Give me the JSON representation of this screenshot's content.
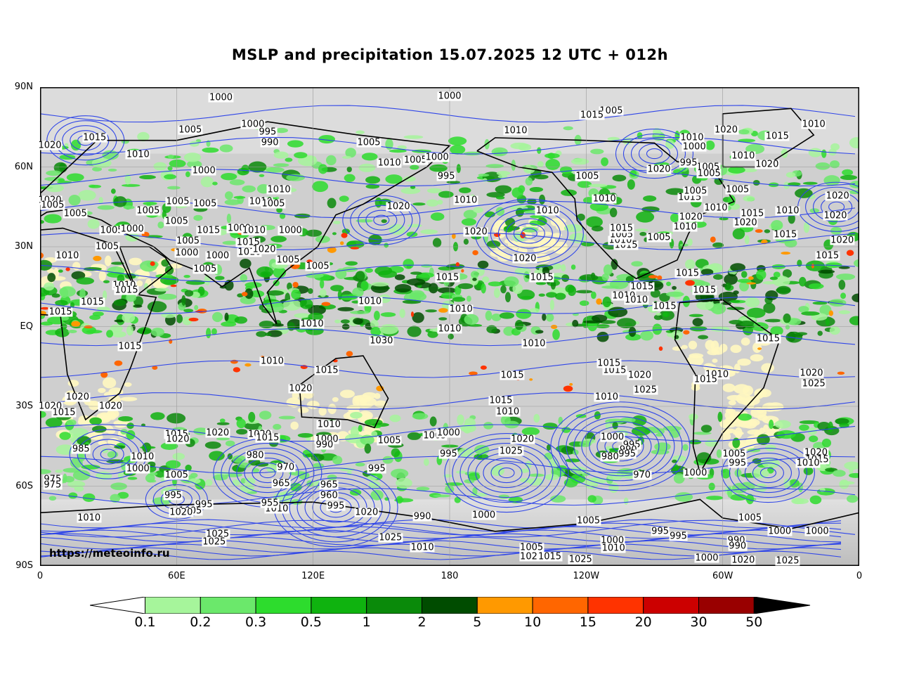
{
  "title": "MSLP and precipitation 15.07.2025 12 UTC + 012h",
  "credit": "https://meteoinfo.ru",
  "lat_labels": [
    "90N",
    "60N",
    "30N",
    "EQ",
    "30S",
    "60S",
    "90S"
  ],
  "lon_labels": [
    "0",
    "60E",
    "120E",
    "180",
    "120W",
    "60W",
    "0"
  ],
  "legend": {
    "ticks": [
      "0.1",
      "0.2",
      "0.3",
      "0.5",
      "1",
      "2",
      "5",
      "10",
      "15",
      "20",
      "30",
      "50"
    ],
    "colors": [
      "#a6f59b",
      "#6be86b",
      "#2ddc2d",
      "#0fb30f",
      "#0a8a0a",
      "#004c00",
      "#ff9900",
      "#ff6600",
      "#ff3300",
      "#cc0000",
      "#990000"
    ],
    "under_color": "#ffffff",
    "over_color": "#000000"
  },
  "isobar_labels": [
    {
      "t": "1000",
      "lon": 79.5,
      "lat": 86.0
    },
    {
      "t": "1000",
      "lon": 180.0,
      "lat": 86.5
    },
    {
      "t": "1005",
      "lon": 251.0,
      "lat": 81.0
    },
    {
      "t": "1005",
      "lon": 66.0,
      "lat": 74.0
    },
    {
      "t": "1000",
      "lon": 93.5,
      "lat": 76.0
    },
    {
      "t": "995",
      "lon": 100.0,
      "lat": 73.0
    },
    {
      "t": "990",
      "lon": 101.0,
      "lat": 69.0
    },
    {
      "t": "1005",
      "lon": 144.5,
      "lat": 69.0
    },
    {
      "t": "1010",
      "lon": 209.0,
      "lat": 73.5
    },
    {
      "t": "1015",
      "lon": 24.0,
      "lat": 71.0
    },
    {
      "t": "1010",
      "lon": 43.0,
      "lat": 64.5
    },
    {
      "t": "1020",
      "lon": 0.5,
      "lat": 68.0
    },
    {
      "t": "1000",
      "lon": 72.0,
      "lat": 58.5
    },
    {
      "t": "1010",
      "lon": 153.5,
      "lat": 61.5
    },
    {
      "t": "1005",
      "lon": 165.0,
      "lat": 62.5
    },
    {
      "t": "1000",
      "lon": 174.5,
      "lat": 63.5
    },
    {
      "t": "995",
      "lon": 178.5,
      "lat": 56.5
    },
    {
      "t": "1010",
      "lon": 105.0,
      "lat": 51.5
    },
    {
      "t": "1010",
      "lon": 187.0,
      "lat": 47.5
    },
    {
      "t": "1020",
      "lon": 157.5,
      "lat": 45.0
    },
    {
      "t": "1010",
      "lon": 297.0,
      "lat": 44.5
    },
    {
      "t": "1020",
      "lon": 272.0,
      "lat": 59.0
    },
    {
      "t": "1005",
      "lon": 293.5,
      "lat": 60.0
    },
    {
      "t": "1010",
      "lon": 309.0,
      "lat": 64.0
    },
    {
      "t": "1020",
      "lon": 319.5,
      "lat": 61.0
    },
    {
      "t": "1015",
      "lon": 324.0,
      "lat": 71.5
    },
    {
      "t": "1010",
      "lon": 340.0,
      "lat": 76.0
    },
    {
      "t": "1020",
      "lon": 301.5,
      "lat": 74.0
    },
    {
      "t": "1005",
      "lon": 306.5,
      "lat": 51.5
    },
    {
      "t": "1015",
      "lon": 285.5,
      "lat": 48.5
    },
    {
      "t": "1015",
      "lon": 313.0,
      "lat": 42.5
    },
    {
      "t": "1010",
      "lon": 328.5,
      "lat": 43.5
    },
    {
      "t": "1020",
      "lon": 310.0,
      "lat": 39.0
    },
    {
      "t": "1015",
      "lon": 327.5,
      "lat": 34.5
    },
    {
      "t": "1020",
      "lon": 349.5,
      "lat": 41.5
    },
    {
      "t": "1020",
      "lon": 350.5,
      "lat": 49.0
    },
    {
      "t": "1015",
      "lon": 346.0,
      "lat": 26.5
    },
    {
      "t": "1020",
      "lon": 352.5,
      "lat": 32.5
    },
    {
      "t": "1020",
      "lon": 4.0,
      "lat": 47.5
    },
    {
      "t": "1005",
      "lon": 5.5,
      "lat": 45.5
    },
    {
      "t": "1005",
      "lon": 15.5,
      "lat": 42.5
    },
    {
      "t": "1005",
      "lon": 31.5,
      "lat": 36.0
    },
    {
      "t": "1000",
      "lon": 40.5,
      "lat": 36.5
    },
    {
      "t": "1005",
      "lon": 29.5,
      "lat": 30.0
    },
    {
      "t": "1010",
      "lon": 12.0,
      "lat": 26.5
    },
    {
      "t": "1010",
      "lon": 37.0,
      "lat": 15.5
    },
    {
      "t": "1015",
      "lon": 38.0,
      "lat": 13.5
    },
    {
      "t": "1015",
      "lon": 23.0,
      "lat": 9.0
    },
    {
      "t": "1015",
      "lon": 9.0,
      "lat": 5.5
    },
    {
      "t": "1005",
      "lon": 47.5,
      "lat": 43.5
    },
    {
      "t": "1005",
      "lon": 60.5,
      "lat": 47.0
    },
    {
      "t": "1005",
      "lon": 72.5,
      "lat": 46.0
    },
    {
      "t": "1005",
      "lon": 60.0,
      "lat": 39.5
    },
    {
      "t": "1005",
      "lon": 65.0,
      "lat": 32.0
    },
    {
      "t": "1000",
      "lon": 64.5,
      "lat": 27.5
    },
    {
      "t": "1015",
      "lon": 74.0,
      "lat": 36.0
    },
    {
      "t": "1000",
      "lon": 87.5,
      "lat": 37.0
    },
    {
      "t": "1010",
      "lon": 94.0,
      "lat": 36.0
    },
    {
      "t": "1000",
      "lon": 110.0,
      "lat": 36.0
    },
    {
      "t": "1010",
      "lon": 97.0,
      "lat": 47.0
    },
    {
      "t": "1005",
      "lon": 102.5,
      "lat": 46.0
    },
    {
      "t": "1015",
      "lon": 91.5,
      "lat": 31.5
    },
    {
      "t": "1010",
      "lon": 92.0,
      "lat": 28.0
    },
    {
      "t": "1020",
      "lon": 98.5,
      "lat": 29.0
    },
    {
      "t": "1005",
      "lon": 72.5,
      "lat": 21.5
    },
    {
      "t": "1000",
      "lon": 78.0,
      "lat": 26.5
    },
    {
      "t": "1005",
      "lon": 109.0,
      "lat": 25.0
    },
    {
      "t": "1005",
      "lon": 122.0,
      "lat": 22.5
    },
    {
      "t": "1015",
      "lon": 179.0,
      "lat": 18.5
    },
    {
      "t": "1015",
      "lon": 220.5,
      "lat": 18.5
    },
    {
      "t": "1020",
      "lon": 191.5,
      "lat": 35.5
    },
    {
      "t": "1020",
      "lon": 213.0,
      "lat": 25.5
    },
    {
      "t": "1010",
      "lon": 145.0,
      "lat": 9.5
    },
    {
      "t": "1010",
      "lon": 185.0,
      "lat": 6.5
    },
    {
      "t": "1010",
      "lon": 180.0,
      "lat": -1.0
    },
    {
      "t": "1010",
      "lon": 119.5,
      "lat": 1.0
    },
    {
      "t": "1030",
      "lon": 150.0,
      "lat": -5.5
    },
    {
      "t": "1010",
      "lon": 217.0,
      "lat": -6.5
    },
    {
      "t": "1010",
      "lon": 102.0,
      "lat": -13.0
    },
    {
      "t": "1015",
      "lon": 126.0,
      "lat": -16.5
    },
    {
      "t": "1015",
      "lon": 39.5,
      "lat": -7.5
    },
    {
      "t": "1015",
      "lon": 207.5,
      "lat": -18.5
    },
    {
      "t": "1015",
      "lon": 252.5,
      "lat": -16.5
    },
    {
      "t": "1020",
      "lon": 263.5,
      "lat": -18.5
    },
    {
      "t": "1025",
      "lon": 266.0,
      "lat": -24.0
    },
    {
      "t": "1010",
      "lon": 249.0,
      "lat": -26.5
    },
    {
      "t": "1015",
      "lon": 202.5,
      "lat": -28.0
    },
    {
      "t": "1010",
      "lon": 205.5,
      "lat": -32.0
    },
    {
      "t": "1020",
      "lon": 114.5,
      "lat": -23.5
    },
    {
      "t": "1020",
      "lon": 16.5,
      "lat": -26.5
    },
    {
      "t": "1020",
      "lon": 4.5,
      "lat": -30.0
    },
    {
      "t": "1015",
      "lon": 10.5,
      "lat": -32.5
    },
    {
      "t": "1020",
      "lon": 31.0,
      "lat": -30.0
    },
    {
      "t": "1015",
      "lon": 60.0,
      "lat": -40.5
    },
    {
      "t": "1020",
      "lon": 60.5,
      "lat": -42.5
    },
    {
      "t": "1020",
      "lon": 78.0,
      "lat": -40.0
    },
    {
      "t": "1020",
      "lon": 96.5,
      "lat": -40.5
    },
    {
      "t": "1015",
      "lon": 100.0,
      "lat": -42.0
    },
    {
      "t": "1010",
      "lon": 127.0,
      "lat": -37.0
    },
    {
      "t": "1000",
      "lon": 126.0,
      "lat": -42.5
    },
    {
      "t": "990",
      "lon": 125.0,
      "lat": -44.5
    },
    {
      "t": "1005",
      "lon": 153.5,
      "lat": -43.0
    },
    {
      "t": "1005",
      "lon": 173.5,
      "lat": -41.0
    },
    {
      "t": "1000",
      "lon": 179.5,
      "lat": -40.0
    },
    {
      "t": "1020",
      "lon": 212.0,
      "lat": -42.5
    },
    {
      "t": "1025",
      "lon": 207.0,
      "lat": -47.0
    },
    {
      "t": "995",
      "lon": 179.5,
      "lat": -48.0
    },
    {
      "t": "995",
      "lon": 148.0,
      "lat": -53.5
    },
    {
      "t": "985",
      "lon": 18.0,
      "lat": -46.0
    },
    {
      "t": "1010",
      "lon": 45.0,
      "lat": -49.0
    },
    {
      "t": "1000",
      "lon": 43.0,
      "lat": -53.5
    },
    {
      "t": "980",
      "lon": 94.5,
      "lat": -48.5
    },
    {
      "t": "970",
      "lon": 108.0,
      "lat": -53.0
    },
    {
      "t": "965",
      "lon": 106.0,
      "lat": -59.0
    },
    {
      "t": "965",
      "lon": 127.0,
      "lat": -59.5
    },
    {
      "t": "960",
      "lon": 127.0,
      "lat": -63.5
    },
    {
      "t": "995",
      "lon": 130.0,
      "lat": -67.5
    },
    {
      "t": "1005",
      "lon": 60.0,
      "lat": -56.0
    },
    {
      "t": "995",
      "lon": 58.5,
      "lat": -63.5
    },
    {
      "t": "995",
      "lon": 72.0,
      "lat": -67.0
    },
    {
      "t": "1005",
      "lon": 66.0,
      "lat": -69.5
    },
    {
      "t": "1020",
      "lon": 62.0,
      "lat": -70.0
    },
    {
      "t": "975",
      "lon": 5.5,
      "lat": -57.5
    },
    {
      "t": "975",
      "lon": 5.5,
      "lat": -59.5
    },
    {
      "t": "1010",
      "lon": 21.5,
      "lat": -72.0
    },
    {
      "t": "1010",
      "lon": 104.0,
      "lat": -68.5
    },
    {
      "t": "955",
      "lon": 101.0,
      "lat": -66.5
    },
    {
      "t": "1020",
      "lon": 143.5,
      "lat": -70.0
    },
    {
      "t": "1025",
      "lon": 78.0,
      "lat": -78.0
    },
    {
      "t": "1025",
      "lon": 76.5,
      "lat": -81.0
    },
    {
      "t": "1025",
      "lon": 154.0,
      "lat": -79.5
    },
    {
      "t": "1010",
      "lon": 168.0,
      "lat": -83.0
    },
    {
      "t": "990",
      "lon": 168.0,
      "lat": -71.5
    },
    {
      "t": "1000",
      "lon": 195.0,
      "lat": -71.0
    },
    {
      "t": "1005",
      "lon": 216.0,
      "lat": -83.0
    },
    {
      "t": "1020",
      "lon": 216.0,
      "lat": -86.5
    },
    {
      "t": "1015",
      "lon": 224.0,
      "lat": -86.5
    },
    {
      "t": "1025",
      "lon": 237.5,
      "lat": -87.5
    },
    {
      "t": "1005",
      "lon": 241.0,
      "lat": -73.0
    },
    {
      "t": "1000",
      "lon": 251.5,
      "lat": -80.5
    },
    {
      "t": "1010",
      "lon": 252.0,
      "lat": -83.5
    },
    {
      "t": "1000",
      "lon": 251.5,
      "lat": -41.5
    },
    {
      "t": "995",
      "lon": 260.0,
      "lat": -44.5
    },
    {
      "t": "990",
      "lon": 258.5,
      "lat": -46.5
    },
    {
      "t": "995",
      "lon": 258.0,
      "lat": -48.0
    },
    {
      "t": "980",
      "lon": 250.5,
      "lat": -49.0
    },
    {
      "t": "970",
      "lon": 264.5,
      "lat": -56.0
    },
    {
      "t": "1000",
      "lon": 288.0,
      "lat": -55.0
    },
    {
      "t": "1005",
      "lon": 305.0,
      "lat": -48.0
    },
    {
      "t": "995",
      "lon": 306.5,
      "lat": -51.5
    },
    {
      "t": "1020",
      "lon": 341.0,
      "lat": -47.5
    },
    {
      "t": "1015",
      "lon": 341.5,
      "lat": -50.0
    },
    {
      "t": "1010",
      "lon": 337.5,
      "lat": -51.5
    },
    {
      "t": "1005",
      "lon": 312.0,
      "lat": -72.0
    },
    {
      "t": "995",
      "lon": 272.5,
      "lat": -77.0
    },
    {
      "t": "995",
      "lon": 280.5,
      "lat": -79.0
    },
    {
      "t": "1000",
      "lon": 325.0,
      "lat": -77.0
    },
    {
      "t": "1000",
      "lon": 341.5,
      "lat": -77.0
    },
    {
      "t": "990",
      "lon": 306.0,
      "lat": -80.5
    },
    {
      "t": "990",
      "lon": 306.5,
      "lat": -82.5
    },
    {
      "t": "1000",
      "lon": 293.0,
      "lat": -87.0
    },
    {
      "t": "1020",
      "lon": 309.0,
      "lat": -88.0
    },
    {
      "t": "1025",
      "lon": 328.5,
      "lat": -88.5
    },
    {
      "t": "1020",
      "lon": 339.0,
      "lat": -17.5
    },
    {
      "t": "1025",
      "lon": 340.0,
      "lat": -21.5
    },
    {
      "t": "1015",
      "lon": 320.0,
      "lat": -4.5
    },
    {
      "t": "1010",
      "lon": 297.5,
      "lat": -18.0
    },
    {
      "t": "1015",
      "lon": 292.5,
      "lat": -20.0
    },
    {
      "t": "1015",
      "lon": 250.0,
      "lat": -14.0
    },
    {
      "t": "1010",
      "lon": 256.5,
      "lat": 11.5
    },
    {
      "t": "1010",
      "lon": 262.0,
      "lat": 10.0
    },
    {
      "t": "1015",
      "lon": 274.5,
      "lat": 7.5
    },
    {
      "t": "1015",
      "lon": 292.0,
      "lat": 13.5
    },
    {
      "t": "1015",
      "lon": 264.5,
      "lat": 15.0
    },
    {
      "t": "1015",
      "lon": 284.5,
      "lat": 20.0
    },
    {
      "t": "1015",
      "lon": 257.5,
      "lat": 30.5
    },
    {
      "t": "1010",
      "lon": 255.0,
      "lat": 32.5
    },
    {
      "t": "1005",
      "lon": 255.5,
      "lat": 34.5
    },
    {
      "t": "1015",
      "lon": 255.5,
      "lat": 37.0
    },
    {
      "t": "1005",
      "lon": 288.0,
      "lat": 51.0
    },
    {
      "t": "1005",
      "lon": 272.0,
      "lat": 33.5
    },
    {
      "t": "1010",
      "lon": 283.5,
      "lat": 37.5
    },
    {
      "t": "1020",
      "lon": 286.0,
      "lat": 41.0
    },
    {
      "t": "1010",
      "lon": 223.0,
      "lat": 43.5
    },
    {
      "t": "1005",
      "lon": 240.5,
      "lat": 56.5
    },
    {
      "t": "1010",
      "lon": 248.0,
      "lat": 48.0
    },
    {
      "t": "1015",
      "lon": 242.5,
      "lat": 79.5
    },
    {
      "t": "1010",
      "lon": 286.5,
      "lat": 71.0
    },
    {
      "t": "1000",
      "lon": 287.5,
      "lat": 67.5
    },
    {
      "t": "995",
      "lon": 285.0,
      "lat": 61.5
    },
    {
      "t": "1005",
      "lon": 294.0,
      "lat": 57.5
    }
  ],
  "isobar_label_style": "black-on-white"
}
